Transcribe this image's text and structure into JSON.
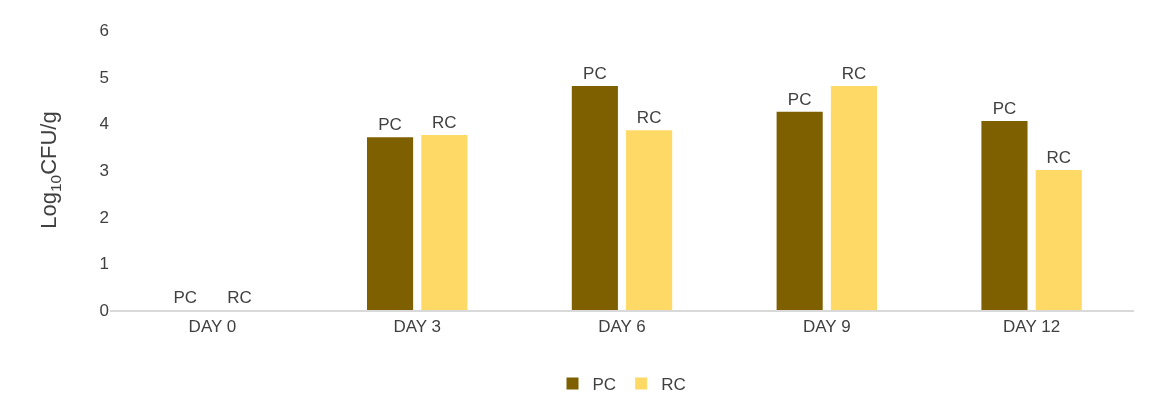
{
  "chart_data": {
    "type": "bar",
    "ylabel": "Log$_{10}$CFU/g",
    "categories": [
      "DAY 0",
      "DAY 3",
      "DAY 6",
      "DAY 9",
      "DAY 12"
    ],
    "series": [
      {
        "name": "PC",
        "color": "#7f6000",
        "values": [
          0,
          3.7,
          4.8,
          4.25,
          4.05
        ]
      },
      {
        "name": "RC",
        "color": "#ffd966",
        "values": [
          0,
          3.75,
          3.85,
          4.8,
          3.0
        ]
      }
    ],
    "ylim": [
      0,
      6
    ],
    "yticks": [
      0,
      1,
      2,
      3,
      4,
      5,
      6
    ],
    "grid": false,
    "legend": "bottom"
  }
}
